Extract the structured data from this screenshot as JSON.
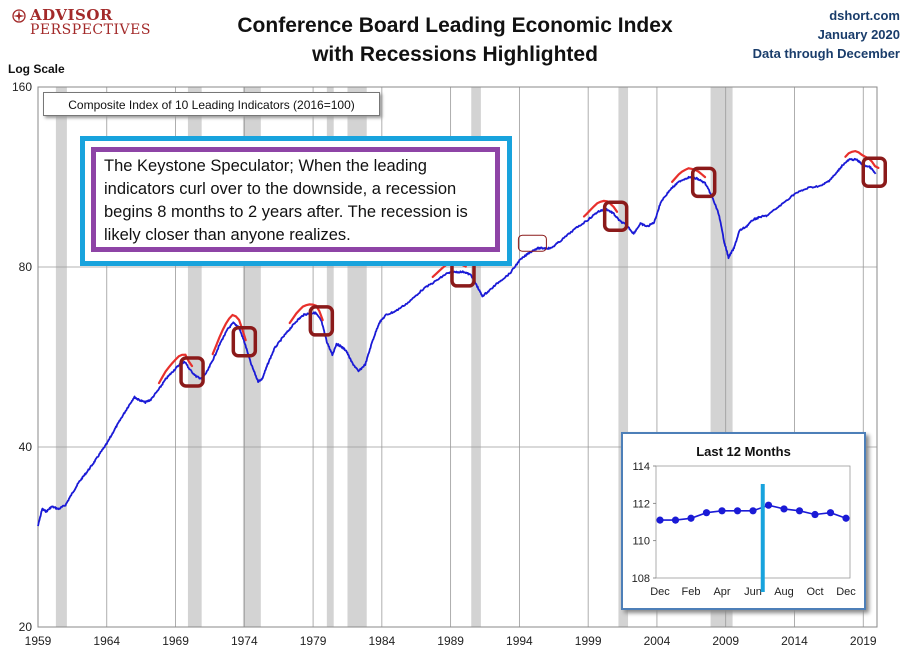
{
  "header": {
    "logo_line1": "ADVISOR",
    "logo_line2": "PERSPECTIVES",
    "title_line1": "Conference Board Leading Economic Index",
    "title_line2": "with Recessions Highlighted",
    "source_line1": "dshort.com",
    "source_line2": "January 2020",
    "source_line3": "Data through December"
  },
  "annotation": {
    "series_label": "Composite Index of 10 Leading Indicators (2016=100)",
    "text": "The Keystone Speculator; When the leading indicators curl over to the downside, a recession begins 8 months to 2 years after. The recession is likely closer than anyone realizes."
  },
  "colors": {
    "line": "#1a1ad6",
    "recession": "#d3d3d3",
    "curl": "#e8302c",
    "marker_box": "#8b1a1a",
    "outer_box": "#18a3dd",
    "inner_box": "#8e44a6",
    "inset_line": "#1a1ad6",
    "inset_marker": "#18a3dd"
  },
  "chart_data": [
    {
      "type": "line",
      "ylabel": "Log Scale",
      "yscale": "log",
      "ylim": [
        20,
        160
      ],
      "yticks": [
        20,
        40,
        80,
        160
      ],
      "xlim": [
        1959.0,
        2020.0
      ],
      "xticks": [
        1959,
        1964,
        1969,
        1974,
        1979,
        1984,
        1989,
        1994,
        1999,
        2004,
        2009,
        2014,
        2019
      ],
      "grid": true,
      "recessions": [
        [
          1960.3,
          1961.1
        ],
        [
          1969.9,
          1970.9
        ],
        [
          1973.9,
          1975.2
        ],
        [
          1980.0,
          1980.5
        ],
        [
          1981.5,
          1982.9
        ],
        [
          1990.5,
          1991.2
        ],
        [
          2001.2,
          2001.9
        ],
        [
          2007.9,
          2009.5
        ]
      ],
      "series": [
        {
          "x": [
            1959.0,
            1959.3,
            1959.6,
            1960.0,
            1960.5,
            1961.0,
            1961.5,
            1962.0,
            1962.5,
            1963.0,
            1963.5,
            1964.0,
            1964.5,
            1965.0,
            1965.5,
            1966.0,
            1966.3,
            1966.8,
            1967.2,
            1967.8,
            1968.3,
            1968.8,
            1969.3,
            1969.7,
            1970.0,
            1970.5,
            1970.9,
            1971.3,
            1971.8,
            1972.3,
            1972.8,
            1973.2,
            1973.6,
            1974.0,
            1974.5,
            1975.0,
            1975.3,
            1975.7,
            1976.2,
            1976.8,
            1977.3,
            1977.8,
            1978.3,
            1978.8,
            1979.2,
            1979.6,
            1980.0,
            1980.4,
            1980.7,
            1981.0,
            1981.4,
            1981.8,
            1982.3,
            1982.8,
            1983.3,
            1983.8,
            1984.3,
            1985.0,
            1986.0,
            1987.0,
            1988.0,
            1988.7,
            1989.3,
            1990.0,
            1990.5,
            1990.9,
            1991.3,
            1991.8,
            1992.5,
            1993.3,
            1994.0,
            1994.7,
            1995.3,
            1995.8,
            1996.3,
            1997.0,
            1998.0,
            1999.0,
            1999.7,
            2000.3,
            2000.8,
            2001.3,
            2001.8,
            2002.3,
            2002.8,
            2003.3,
            2003.8,
            2004.3,
            2005.0,
            2005.7,
            2006.3,
            2006.9,
            2007.5,
            2008.0,
            2008.5,
            2008.9,
            2009.2,
            2009.6,
            2010.0,
            2010.5,
            2011.0,
            2011.5,
            2012.0,
            2013.0,
            2014.0,
            2015.0,
            2016.0,
            2016.5,
            2017.0,
            2017.5,
            2018.0,
            2018.5,
            2019.0,
            2019.5,
            2019.9
          ],
          "y": [
            29.5,
            31.5,
            31.2,
            31.8,
            31.5,
            32.0,
            33.5,
            35.0,
            36.2,
            37.5,
            39.0,
            40.5,
            42.5,
            44.5,
            46.5,
            48.5,
            48.0,
            47.5,
            48.0,
            50.0,
            52.0,
            53.5,
            55.0,
            55.5,
            54.0,
            52.5,
            52.0,
            53.5,
            56.5,
            60.0,
            63.0,
            64.5,
            63.5,
            60.0,
            55.0,
            51.5,
            52.0,
            55.0,
            58.5,
            61.0,
            63.0,
            65.0,
            66.5,
            67.0,
            67.0,
            65.0,
            60.0,
            57.0,
            59.5,
            59.0,
            58.0,
            55.5,
            53.5,
            55.0,
            60.0,
            64.5,
            66.5,
            67.5,
            70.0,
            73.5,
            76.0,
            78.0,
            78.5,
            78.5,
            77.5,
            74.5,
            71.5,
            73.0,
            75.5,
            78.0,
            82.0,
            84.5,
            86.0,
            86.0,
            86.0,
            88.5,
            92.5,
            96.0,
            99.0,
            100.0,
            98.5,
            95.5,
            94.0,
            91.0,
            94.5,
            93.5,
            95.0,
            103.0,
            108.0,
            111.5,
            113.0,
            112.5,
            110.5,
            105.0,
            98.0,
            88.0,
            83.0,
            86.0,
            92.0,
            93.5,
            96.0,
            97.0,
            97.5,
            101.5,
            106.0,
            108.5,
            109.5,
            111.5,
            114.5,
            118.5,
            121.0,
            121.0,
            118.5,
            117.5,
            114.5
          ]
        }
      ],
      "curls": [
        1969.7,
        1973.6,
        1979.2,
        1989.6,
        2000.6,
        2007.0,
        2019.6
      ],
      "boxed_points": [
        1970.2,
        1974.0,
        1979.6,
        1989.9,
        2001.0,
        2007.4,
        2019.8,
        1995.6
      ]
    },
    {
      "type": "line",
      "title": "Last 12 Months",
      "ylim": [
        108,
        114
      ],
      "yticks": [
        108,
        110,
        112,
        114
      ],
      "categories": [
        "Dec",
        "Jan",
        "Feb",
        "Mar",
        "Apr",
        "May",
        "Jun",
        "Jul",
        "Aug",
        "Sep",
        "Oct",
        "Nov",
        "Dec"
      ],
      "xtick_labels": [
        "Dec",
        "Feb",
        "Apr",
        "Jun",
        "Aug",
        "Oct",
        "Dec"
      ],
      "values": [
        111.1,
        111.1,
        111.2,
        111.5,
        111.6,
        111.6,
        111.6,
        111.9,
        111.7,
        111.6,
        111.4,
        111.5,
        111.2
      ],
      "marker_index": 7
    }
  ]
}
